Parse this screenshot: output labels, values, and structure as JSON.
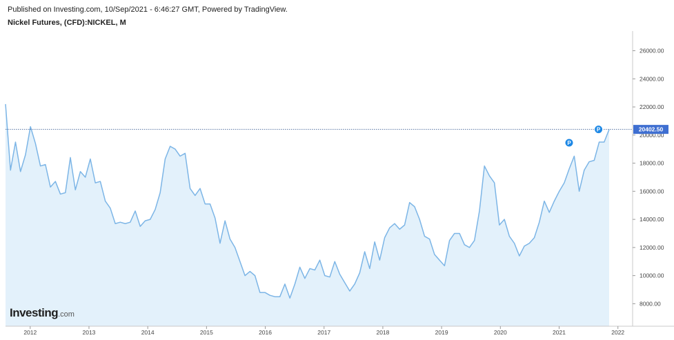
{
  "header": {
    "published": "Published on Investing.com, 10/Sep/2021 - 6:46:27 GMT, Powered by TradingView.",
    "instrument": "Nickel Futures, (CFD):NICKEL, M"
  },
  "logo": {
    "brand": "Investing",
    "suffix": ".com"
  },
  "colors": {
    "line": "#7cb5e6",
    "fill": "#e3f1fb",
    "price_tag": "#3f6fd1",
    "marker": "#1e88e5",
    "axis_text": "#444444"
  },
  "chart_data": {
    "type": "area",
    "title": "Nickel Futures, (CFD):NICKEL, M",
    "xlabel": "",
    "ylabel": "",
    "x_tick_labels": [
      "2012",
      "2013",
      "2014",
      "2015",
      "2016",
      "2017",
      "2018",
      "2019",
      "2020",
      "2021",
      "2022"
    ],
    "y_tick_labels": [
      "8000.00",
      "10000.00",
      "12000.00",
      "14000.00",
      "16000.00",
      "18000.00",
      "20000.00",
      "22000.00",
      "24000.00",
      "26000.00"
    ],
    "y_ticks": [
      8000,
      10000,
      12000,
      14000,
      16000,
      18000,
      20000,
      22000,
      24000,
      26000
    ],
    "x_start_year": 2011.58,
    "x_end_year": 2022.25,
    "ylim": [
      6400,
      27400
    ],
    "current_price": 20402.5,
    "current_price_label": "20402.50",
    "grid": false,
    "series": [
      {
        "values": [
          22200,
          17500,
          19500,
          17400,
          18600,
          20600,
          19400,
          17800,
          17900,
          16300,
          16700,
          15800,
          15900,
          18400,
          16100,
          17400,
          17000,
          18300,
          16600,
          16700,
          15300,
          14800,
          13700,
          13800,
          13700,
          13800,
          14600,
          13500,
          13900,
          14000,
          14700,
          15900,
          18300,
          19200,
          19000,
          18500,
          18700,
          16200,
          15700,
          16200,
          15100,
          15100,
          14100,
          12300,
          13900,
          12600,
          12000,
          11000,
          10000,
          10300,
          10000,
          8800,
          8800,
          8600,
          8500,
          8500,
          9400,
          8400,
          9400,
          10600,
          9800,
          10500,
          10400,
          11100,
          10000,
          9900,
          11000,
          10100,
          9500,
          8900,
          9400,
          10200,
          11700,
          10500,
          12400,
          11100,
          12700,
          13400,
          13700,
          13300,
          13600,
          15200,
          14900,
          14000,
          12800,
          12600,
          11500,
          11100,
          10700,
          12500,
          13000,
          13000,
          12200,
          12000,
          12500,
          14600,
          17800,
          17100,
          16600,
          13600,
          14000,
          12800,
          12300,
          11400,
          12100,
          12300,
          12700,
          13800,
          15300,
          14500,
          15300,
          16000,
          16600,
          17600,
          18500,
          16000,
          17500,
          18100,
          18200,
          19500,
          19500,
          20400
        ]
      }
    ],
    "annotations": [
      {
        "label": "P",
        "x_year": 2021.17,
        "value": 19450
      },
      {
        "label": "P",
        "x_year": 2021.67,
        "value": 20402.5
      }
    ]
  }
}
